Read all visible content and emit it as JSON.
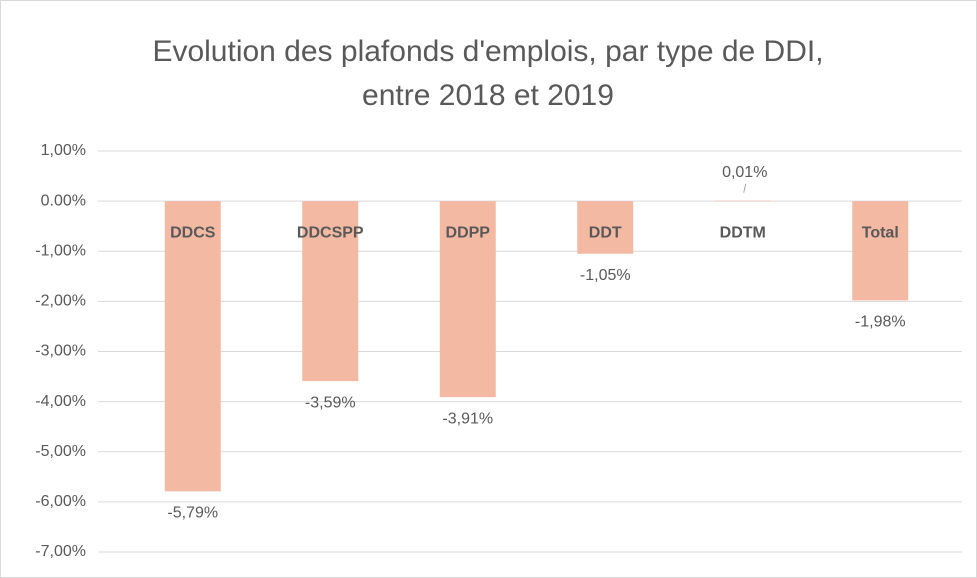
{
  "chart_data": {
    "type": "bar",
    "title": "Evolution des plafonds d'emplois, par type de DDI, entre 2018 et 2019",
    "categories": [
      "DDCS",
      "DDCSPP",
      "DDPP",
      "DDT",
      "DDTM",
      "Total"
    ],
    "values": [
      -5.79,
      -3.59,
      -3.91,
      -1.05,
      0.01,
      -1.98
    ],
    "value_labels": [
      "-5,79%",
      "-3,59%",
      "-3,91%",
      "-1,05%",
      "0,01%",
      "-1,98%"
    ],
    "color": "#f4b9a2",
    "ylim": [
      -7,
      1
    ],
    "yticks": [
      {
        "value": 1,
        "label": "1,00%"
      },
      {
        "value": 0,
        "label": "0.00%"
      },
      {
        "value": -1,
        "label": "-1,00%"
      },
      {
        "value": -2,
        "label": "-2,00%"
      },
      {
        "value": -3,
        "label": "-3,00%"
      },
      {
        "value": -4,
        "label": "-4,00%"
      },
      {
        "value": -5,
        "label": "-5,00%"
      },
      {
        "value": -6,
        "label": "-6,00%"
      },
      {
        "value": -7,
        "label": "-7,00%"
      }
    ],
    "grid": true
  }
}
